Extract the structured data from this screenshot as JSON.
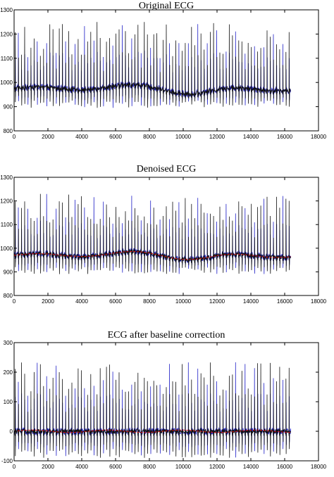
{
  "chart_data": [
    {
      "type": "line",
      "title": "Original ECG",
      "xlabel": "",
      "ylabel": "",
      "xlim": [
        0,
        18000
      ],
      "ylim": [
        800,
        1300
      ],
      "xticks": [
        0,
        2000,
        4000,
        6000,
        8000,
        10000,
        12000,
        14000,
        16000,
        18000
      ],
      "yticks": [
        800,
        900,
        1000,
        1100,
        1200,
        1300
      ],
      "grid": false,
      "signal_samples": 16384,
      "baseline_level": 980,
      "baseline_dip_level": 955,
      "r_peak_range": [
        1100,
        1250
      ],
      "trough_level": 925,
      "red_trend": false,
      "colors": {
        "trace_dark": "#111111",
        "trace_blue": "#2323c8"
      }
    },
    {
      "type": "line",
      "title": "Denoised ECG",
      "xlabel": "",
      "ylabel": "",
      "xlim": [
        0,
        18000
      ],
      "ylim": [
        800,
        1300
      ],
      "xticks": [
        0,
        2000,
        4000,
        6000,
        8000,
        10000,
        12000,
        14000,
        16000,
        18000
      ],
      "yticks": [
        800,
        900,
        1000,
        1100,
        1200,
        1300
      ],
      "grid": false,
      "signal_samples": 16384,
      "baseline_level": 975,
      "baseline_dip_level": 955,
      "r_peak_range": [
        1100,
        1230
      ],
      "trough_level": 920,
      "red_trend": true,
      "colors": {
        "trace_dark": "#111111",
        "trace_blue": "#2323c8",
        "trend": "#dd1010"
      }
    },
    {
      "type": "line",
      "title": "ECG after baseline correction",
      "xlabel": "",
      "ylabel": "",
      "xlim": [
        0,
        18000
      ],
      "ylim": [
        -100,
        300
      ],
      "xticks": [
        0,
        2000,
        4000,
        6000,
        8000,
        10000,
        12000,
        14000,
        16000,
        18000
      ],
      "yticks": [
        -100,
        0,
        100,
        200,
        300
      ],
      "grid": false,
      "signal_samples": 16384,
      "baseline_level": 0,
      "baseline_dip_level": 0,
      "r_peak_range": [
        120,
        235
      ],
      "trough_level": -60,
      "red_trend": true,
      "colors": {
        "trace_dark": "#111111",
        "trace_blue": "#2323c8",
        "trend": "#dd1010"
      }
    }
  ]
}
